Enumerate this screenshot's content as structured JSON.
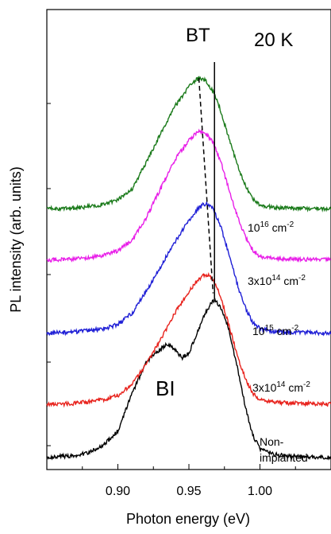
{
  "chart_data": {
    "type": "line",
    "xlabel": "Photon energy (eV)",
    "ylabel": "PL intensity (arb. units)",
    "xlim": [
      0.85,
      1.05
    ],
    "x_ticks": [
      "0.90",
      "0.95",
      "1.00"
    ],
    "x_tick_values": [
      0.9,
      0.95,
      1.0
    ],
    "y_axis_numeric_labels": false,
    "ylim": [
      0,
      10
    ],
    "grid": false,
    "annotations": {
      "temperature": "20 K",
      "bt": "BT",
      "bi": "BI"
    },
    "marker_lines": {
      "dashed_bt_shift": [
        [
          0.957,
          8.55
        ],
        [
          0.967,
          3.7
        ]
      ],
      "solid_reference_energy": 0.968
    },
    "series": [
      {
        "name": "Non-implanted",
        "label_lines": [
          "Non-",
          "implanted"
        ],
        "color": "#000000",
        "offset": 0,
        "points": [
          [
            0.85,
            0.0
          ],
          [
            0.87,
            0.05
          ],
          [
            0.88,
            0.12
          ],
          [
            0.89,
            0.28
          ],
          [
            0.9,
            0.6
          ],
          [
            0.91,
            1.45
          ],
          [
            0.92,
            2.15
          ],
          [
            0.93,
            2.45
          ],
          [
            0.935,
            2.55
          ],
          [
            0.94,
            2.45
          ],
          [
            0.945,
            2.25
          ],
          [
            0.95,
            2.35
          ],
          [
            0.955,
            2.75
          ],
          [
            0.96,
            3.15
          ],
          [
            0.965,
            3.45
          ],
          [
            0.968,
            3.55
          ],
          [
            0.972,
            3.4
          ],
          [
            0.978,
            2.9
          ],
          [
            0.985,
            1.9
          ],
          [
            0.99,
            1.1
          ],
          [
            0.995,
            0.5
          ],
          [
            1.0,
            0.2
          ],
          [
            1.01,
            0.07
          ],
          [
            1.02,
            0.03
          ],
          [
            1.05,
            0.0
          ]
        ]
      },
      {
        "name": "3x10^14 cm^-2",
        "label": {
          "base": "3x10",
          "sup1": "14",
          "unit": " cm",
          "sup2": "-2"
        },
        "color": "#e8231d",
        "offset": 1.2,
        "points": [
          [
            0.85,
            0.0
          ],
          [
            0.87,
            0.02
          ],
          [
            0.89,
            0.1
          ],
          [
            0.9,
            0.2
          ],
          [
            0.91,
            0.45
          ],
          [
            0.92,
            0.9
          ],
          [
            0.93,
            1.45
          ],
          [
            0.94,
            2.05
          ],
          [
            0.95,
            2.55
          ],
          [
            0.955,
            2.75
          ],
          [
            0.96,
            2.9
          ],
          [
            0.963,
            2.92
          ],
          [
            0.967,
            2.8
          ],
          [
            0.972,
            2.45
          ],
          [
            0.978,
            1.8
          ],
          [
            0.985,
            1.0
          ],
          [
            0.99,
            0.55
          ],
          [
            0.995,
            0.25
          ],
          [
            1.0,
            0.1
          ],
          [
            1.01,
            0.04
          ],
          [
            1.05,
            0.0
          ]
        ]
      },
      {
        "name": "10^15 cm^-2",
        "label": {
          "base": "10",
          "sup1": "15",
          "unit": " cm",
          "sup2": "-2"
        },
        "color": "#1f1fd6",
        "offset": 2.8,
        "points": [
          [
            0.85,
            0.0
          ],
          [
            0.87,
            0.03
          ],
          [
            0.89,
            0.1
          ],
          [
            0.9,
            0.2
          ],
          [
            0.91,
            0.45
          ],
          [
            0.92,
            0.95
          ],
          [
            0.93,
            1.5
          ],
          [
            0.94,
            2.05
          ],
          [
            0.95,
            2.55
          ],
          [
            0.955,
            2.75
          ],
          [
            0.96,
            2.9
          ],
          [
            0.963,
            2.92
          ],
          [
            0.967,
            2.8
          ],
          [
            0.972,
            2.45
          ],
          [
            0.978,
            1.8
          ],
          [
            0.985,
            1.0
          ],
          [
            0.99,
            0.55
          ],
          [
            0.995,
            0.25
          ],
          [
            1.0,
            0.1
          ],
          [
            1.01,
            0.04
          ],
          [
            1.05,
            0.0
          ]
        ]
      },
      {
        "name": "3x10^14 cm^-2",
        "label": {
          "base": "3x10",
          "sup1": "14",
          "unit": " cm",
          "sup2": "-2"
        },
        "color": "#e81fe8",
        "offset": 4.45,
        "points": [
          [
            0.85,
            0.0
          ],
          [
            0.87,
            0.02
          ],
          [
            0.89,
            0.1
          ],
          [
            0.9,
            0.2
          ],
          [
            0.91,
            0.45
          ],
          [
            0.92,
            0.95
          ],
          [
            0.93,
            1.6
          ],
          [
            0.94,
            2.25
          ],
          [
            0.95,
            2.7
          ],
          [
            0.955,
            2.85
          ],
          [
            0.958,
            2.9
          ],
          [
            0.962,
            2.85
          ],
          [
            0.967,
            2.65
          ],
          [
            0.972,
            2.25
          ],
          [
            0.978,
            1.6
          ],
          [
            0.985,
            0.9
          ],
          [
            0.99,
            0.5
          ],
          [
            0.995,
            0.22
          ],
          [
            1.0,
            0.08
          ],
          [
            1.01,
            0.03
          ],
          [
            1.05,
            0.0
          ]
        ]
      },
      {
        "name": "10^16 cm^-2",
        "label": {
          "base": "10",
          "sup1": "16",
          "unit": " cm",
          "sup2": "-2"
        },
        "color": "#1a7a1a",
        "offset": 5.6,
        "points": [
          [
            0.85,
            0.0
          ],
          [
            0.87,
            0.02
          ],
          [
            0.89,
            0.1
          ],
          [
            0.9,
            0.2
          ],
          [
            0.91,
            0.45
          ],
          [
            0.92,
            1.05
          ],
          [
            0.93,
            1.7
          ],
          [
            0.94,
            2.3
          ],
          [
            0.95,
            2.75
          ],
          [
            0.955,
            2.9
          ],
          [
            0.958,
            2.95
          ],
          [
            0.962,
            2.88
          ],
          [
            0.967,
            2.65
          ],
          [
            0.972,
            2.25
          ],
          [
            0.978,
            1.6
          ],
          [
            0.985,
            0.9
          ],
          [
            0.99,
            0.5
          ],
          [
            0.995,
            0.22
          ],
          [
            1.0,
            0.08
          ],
          [
            1.01,
            0.03
          ],
          [
            1.05,
            0.0
          ]
        ]
      }
    ]
  }
}
